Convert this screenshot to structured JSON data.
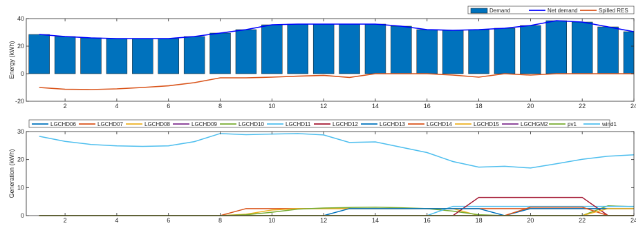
{
  "chart_data": [
    {
      "type": "bar",
      "x": [
        1,
        2,
        3,
        4,
        5,
        6,
        7,
        8,
        9,
        10,
        11,
        12,
        13,
        14,
        15,
        16,
        17,
        18,
        19,
        20,
        21,
        22,
        23,
        24
      ],
      "xlim": [
        0.5,
        24
      ],
      "xticks": [
        2,
        4,
        6,
        8,
        10,
        12,
        14,
        16,
        18,
        20,
        22,
        24
      ],
      "ylim": [
        -20,
        40
      ],
      "yticks": [
        -20,
        0,
        20,
        40
      ],
      "ylabel": "Energy (kWh)",
      "grid": false,
      "legend_position": "top-right",
      "series": [
        {
          "name": "Demand",
          "kind": "bar",
          "color": "#0072BD",
          "values": [
            28.5,
            27,
            26,
            25.5,
            25.5,
            25.5,
            27,
            29.5,
            32,
            35.5,
            36,
            36,
            36,
            36,
            34.5,
            32,
            31.5,
            32,
            33,
            35,
            38.5,
            37.5,
            34,
            30.5
          ]
        },
        {
          "name": "Net demand",
          "kind": "line",
          "color": "#0000FF",
          "values": [
            28.5,
            27,
            26,
            25.5,
            25.5,
            25.5,
            27,
            29.5,
            32,
            35.5,
            36,
            36,
            36,
            36,
            34.5,
            32,
            31.5,
            32,
            33,
            35,
            38.5,
            37.5,
            34,
            30.5
          ]
        },
        {
          "name": "Spilled RES",
          "kind": "line",
          "color": "#D95319",
          "values": [
            -10,
            -11.3,
            -11.5,
            -11,
            -10,
            -8.8,
            -6.5,
            -3,
            -3,
            -2.5,
            -1.8,
            -1.2,
            -2.7,
            0,
            0,
            0,
            -1,
            -2.5,
            0,
            -1,
            0,
            0,
            0,
            0
          ]
        }
      ]
    },
    {
      "type": "line",
      "x": [
        1,
        2,
        3,
        4,
        5,
        6,
        7,
        8,
        9,
        10,
        11,
        12,
        13,
        14,
        15,
        16,
        17,
        18,
        19,
        20,
        21,
        22,
        23,
        24
      ],
      "xlim": [
        0.5,
        24
      ],
      "xticks": [
        2,
        4,
        6,
        8,
        10,
        12,
        14,
        16,
        18,
        20,
        22,
        24
      ],
      "ylim": [
        0,
        30
      ],
      "yticks": [
        0,
        10,
        20,
        30
      ],
      "ylabel": "Generation (kWh)",
      "grid": false,
      "legend_position": "top",
      "series": [
        {
          "name": "LGCHD06",
          "color": "#0072BD",
          "values": [
            0,
            0,
            0,
            0,
            0,
            0,
            0,
            0,
            0,
            0,
            0,
            0,
            0,
            0,
            0,
            0,
            0,
            0,
            0,
            0,
            0,
            0,
            0,
            0
          ]
        },
        {
          "name": "LGCHD07",
          "color": "#D95319",
          "values": [
            0,
            0,
            0,
            0,
            0,
            0,
            0,
            0,
            2.5,
            2.5,
            2.5,
            2.5,
            2.5,
            2.5,
            2.5,
            2.5,
            2.5,
            2.5,
            2.5,
            2.5,
            2.5,
            2.5,
            2.5,
            2.5
          ]
        },
        {
          "name": "LGCHD08",
          "color": "#EDB120",
          "values": [
            0,
            0,
            0,
            0,
            0,
            0,
            0,
            0,
            0.5,
            2,
            2.5,
            2.5,
            2.5,
            2.5,
            2.5,
            2.5,
            2.5,
            0,
            0,
            0,
            0,
            0,
            0,
            0
          ]
        },
        {
          "name": "LGCHD09",
          "color": "#7E2F8E",
          "values": [
            0,
            0,
            0,
            0,
            0,
            0,
            0,
            0,
            0,
            0,
            0,
            0,
            0,
            0,
            0,
            0,
            0,
            0,
            0,
            0,
            0,
            0,
            0,
            0
          ]
        },
        {
          "name": "LGCHD10",
          "color": "#77AC30",
          "values": [
            0,
            0,
            0,
            0,
            0,
            0,
            0,
            0,
            0.3,
            1.2,
            2.3,
            2.7,
            2.9,
            3,
            2.8,
            2.5,
            1.6,
            0.3,
            0,
            0,
            0,
            0,
            3.5,
            3.2
          ]
        },
        {
          "name": "LGCHD11",
          "color": "#4DBEEE",
          "values": [
            0,
            0,
            0,
            0,
            0,
            0,
            0,
            0,
            0,
            0,
            0,
            0,
            0,
            0,
            0,
            0,
            3.3,
            3.3,
            3.3,
            3.3,
            3.3,
            3.3,
            3.3,
            3.3
          ]
        },
        {
          "name": "LGCHD12",
          "color": "#A2142F",
          "values": [
            0,
            0,
            0,
            0,
            0,
            0,
            0,
            0,
            0,
            0,
            0,
            0,
            0,
            0,
            0,
            0,
            0,
            6.5,
            6.5,
            6.5,
            6.5,
            6.5,
            0,
            0
          ]
        },
        {
          "name": "LGCHD13",
          "color": "#0072BD",
          "values": [
            0,
            0,
            0,
            0,
            0,
            0,
            0,
            0,
            0,
            0,
            0,
            0,
            2.5,
            2.5,
            2.5,
            2.5,
            2.5,
            2.5,
            0,
            2.5,
            2.5,
            2.5,
            2.5,
            2.5
          ]
        },
        {
          "name": "LGCHD14",
          "color": "#D95319",
          "values": [
            0,
            0,
            0,
            0,
            0,
            0,
            0,
            0,
            0,
            0,
            0,
            0,
            0,
            0,
            0,
            0,
            0,
            0,
            0,
            3,
            3,
            3,
            0,
            0
          ]
        },
        {
          "name": "LGCHD15",
          "color": "#EDB120",
          "values": [
            0,
            0,
            0,
            0,
            0,
            0,
            0,
            0,
            0,
            0,
            0,
            0,
            0,
            0,
            0,
            0,
            0,
            0,
            0,
            0,
            0,
            0,
            2.5,
            2.5
          ]
        },
        {
          "name": "LGCHGM2",
          "color": "#7E2F8E",
          "values": [
            0,
            0,
            0,
            0,
            0,
            0,
            0,
            0,
            0,
            0,
            0,
            0,
            0,
            0,
            0,
            0,
            0,
            0,
            0,
            0,
            0,
            0,
            0,
            0
          ]
        },
        {
          "name": "pv1",
          "color": "#77AC30",
          "values": [
            0,
            0,
            0,
            0,
            0,
            0,
            0,
            0,
            0,
            0,
            0,
            0,
            0,
            0,
            0,
            0,
            0,
            0,
            0,
            0,
            0,
            0,
            0,
            0
          ]
        },
        {
          "name": "wind1",
          "color": "#4DBEEE",
          "values": [
            28.3,
            26.5,
            25.4,
            24.9,
            24.7,
            24.9,
            26.4,
            29.3,
            28.9,
            29.1,
            29.3,
            28.8,
            26.1,
            26.3,
            24.4,
            22.5,
            19.3,
            17.3,
            17.6,
            17,
            18.5,
            20.1,
            21.2,
            21.7
          ]
        }
      ]
    }
  ]
}
